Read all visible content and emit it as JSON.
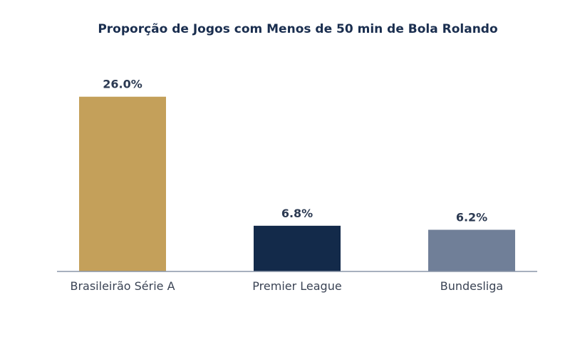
{
  "chart_data": {
    "type": "bar",
    "title": "Proporção de Jogos com Menos de 50 min de Bola Rolando",
    "categories": [
      "Brasileirão Série A",
      "Premier League",
      "Bundesliga"
    ],
    "values": [
      26.0,
      6.8,
      6.2
    ],
    "value_labels": [
      "26.0%",
      "6.8%",
      "6.2%"
    ],
    "bar_colors": [
      "#c4a05a",
      "#132a4a",
      "#707f98"
    ],
    "ylim": [
      0,
      30
    ],
    "grid": false,
    "axis_color": "#8a95a8"
  }
}
